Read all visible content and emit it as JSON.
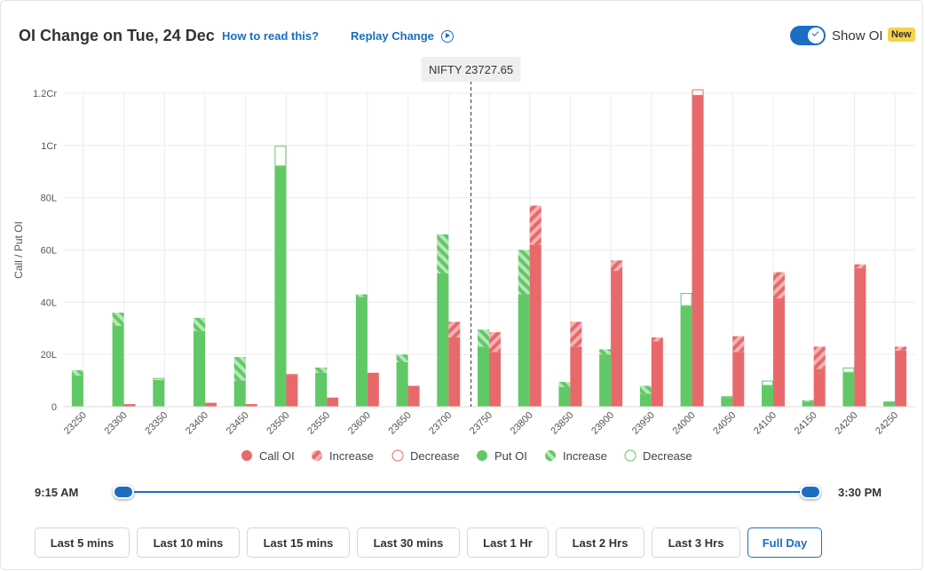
{
  "header": {
    "title": "OI Change on Tue, 24 Dec",
    "how_link": "How to read this?",
    "replay_link": "Replay Change",
    "show_oi_label": "Show OI",
    "badge": "New",
    "show_oi_on": true
  },
  "colors": {
    "call": "#e8696b",
    "call_light": "#f4b3b4",
    "put": "#60c966",
    "put_light": "#b7e6b9",
    "accent": "#1b6ec2"
  },
  "chart_data": {
    "type": "bar",
    "ylabel": "Call / Put OI",
    "y_ticks": [
      "0",
      "20L",
      "40L",
      "60L",
      "80L",
      "1Cr",
      "1.2Cr"
    ],
    "ylim": [
      0,
      120
    ],
    "unit": "Lakh",
    "categories": [
      "23250",
      "23300",
      "23350",
      "23400",
      "23450",
      "23500",
      "23550",
      "23600",
      "23650",
      "23700",
      "23750",
      "23800",
      "23850",
      "23900",
      "23950",
      "24000",
      "24050",
      "24100",
      "24150",
      "24200",
      "24250"
    ],
    "spot_label": "NIFTY 23727.65",
    "spot_value": 23727.65,
    "legend": [
      "Call OI",
      "Increase",
      "Decrease",
      "Put OI",
      "Increase",
      "Decrease"
    ],
    "series": [
      {
        "name": "Put OI",
        "base": [
          12,
          31,
          10,
          29,
          10,
          92,
          13,
          42,
          17,
          51,
          23,
          43,
          7.5,
          20,
          5,
          38.5,
          3.5,
          8,
          2,
          13,
          2
        ],
        "change": [
          2,
          5,
          1,
          5,
          9,
          8,
          2,
          1,
          3,
          15,
          6.5,
          17,
          2,
          2,
          3,
          5,
          0.5,
          2,
          0.5,
          2,
          0
        ],
        "change_type": [
          "inc",
          "inc",
          "dec",
          "inc",
          "inc",
          "dec",
          "inc",
          "inc",
          "inc",
          "inc",
          "inc",
          "inc",
          "inc",
          "inc",
          "inc",
          "dec",
          "dec",
          "dec",
          "inc",
          "dec",
          "inc"
        ]
      },
      {
        "name": "Call OI",
        "base": [
          0.1,
          1,
          0.1,
          1.5,
          1,
          12,
          3.5,
          13,
          8,
          26.5,
          21,
          62,
          23,
          52,
          25,
          119,
          21,
          41.5,
          14.5,
          53,
          21.5
        ],
        "change": [
          0,
          0,
          0,
          0,
          0,
          0.5,
          0,
          0,
          0,
          6,
          7.5,
          15,
          9.5,
          4,
          1.5,
          2.5,
          6,
          10,
          8.5,
          1.5,
          1.5
        ],
        "change_type": [
          "inc",
          "inc",
          "inc",
          "inc",
          "inc",
          "dec",
          "inc",
          "inc",
          "inc",
          "inc",
          "inc",
          "inc",
          "inc",
          "inc",
          "inc",
          "dec",
          "inc",
          "inc",
          "inc",
          "inc",
          "inc"
        ]
      }
    ]
  },
  "slider": {
    "start_label": "9:15 AM",
    "end_label": "3:30 PM"
  },
  "ranges": [
    {
      "label": "Last 5 mins",
      "active": false
    },
    {
      "label": "Last 10 mins",
      "active": false
    },
    {
      "label": "Last 15 mins",
      "active": false
    },
    {
      "label": "Last 30 mins",
      "active": false
    },
    {
      "label": "Last 1 Hr",
      "active": false
    },
    {
      "label": "Last 2 Hrs",
      "active": false
    },
    {
      "label": "Last 3 Hrs",
      "active": false
    },
    {
      "label": "Full Day",
      "active": true
    }
  ]
}
